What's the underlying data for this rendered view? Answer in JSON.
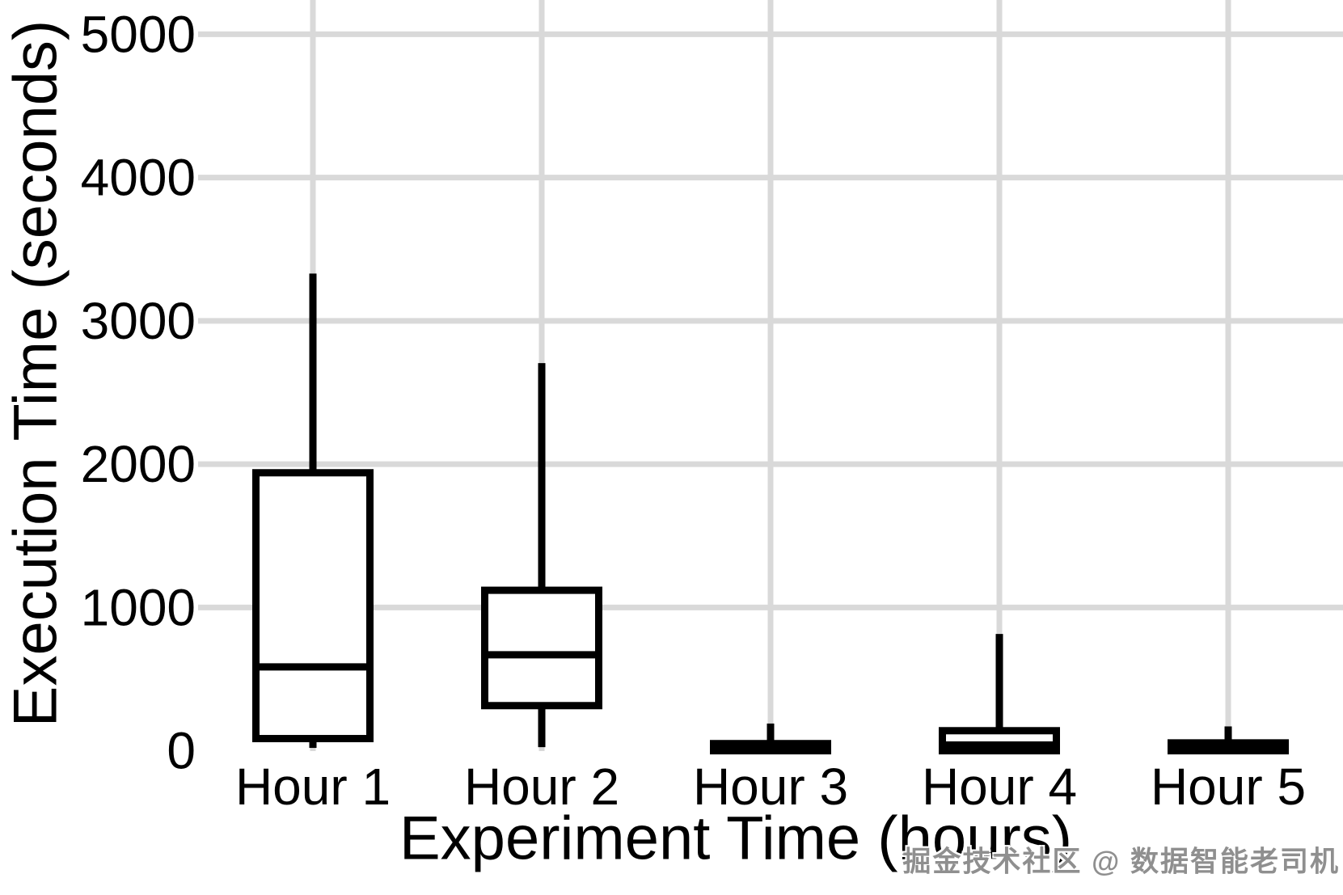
{
  "chart_data": {
    "type": "box",
    "title": "",
    "xlabel": "Experiment Time (hours)",
    "ylabel": "Execution Time (seconds)",
    "categories": [
      "Hour 1",
      "Hour 2",
      "Hour 3",
      "Hour 4",
      "Hour 5"
    ],
    "y_ticks": [
      0,
      1000,
      2000,
      3000,
      4000,
      5000
    ],
    "ylim": [
      0,
      5240
    ],
    "grid": true,
    "legend": false,
    "series": [
      {
        "category": "Hour 1",
        "min": 20,
        "q1": 85,
        "median": 585,
        "q3": 1940,
        "max": 3330
      },
      {
        "category": "Hour 2",
        "min": 25,
        "q1": 315,
        "median": 670,
        "q3": 1120,
        "max": 2705
      },
      {
        "category": "Hour 3",
        "min": 0,
        "q1": 0,
        "median": 20,
        "q3": 50,
        "max": 190
      },
      {
        "category": "Hour 4",
        "min": 0,
        "q1": 0,
        "median": 40,
        "q3": 140,
        "max": 815
      },
      {
        "category": "Hour 5",
        "min": 0,
        "q1": 0,
        "median": 25,
        "q3": 55,
        "max": 170
      }
    ],
    "colors": {
      "box_stroke": "#000000",
      "box_fill": "#ffffff",
      "grid": "#d9d9d9",
      "background": "#ffffff",
      "text": "#000000"
    }
  },
  "watermark": {
    "text": "掘金技术社区 @ 数据智能老司机",
    "color": "#8f8f8f"
  }
}
